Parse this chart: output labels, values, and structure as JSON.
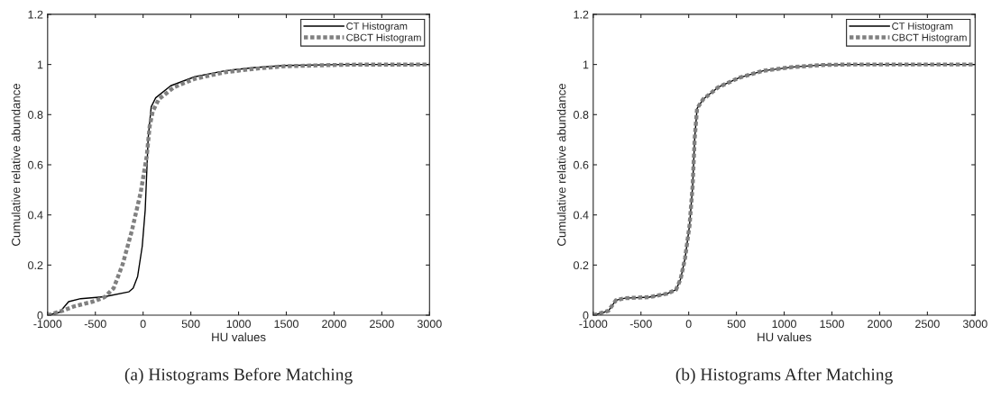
{
  "chart_data": [
    {
      "type": "line",
      "xlabel": "HU values",
      "ylabel": "Cumulative relative abundance",
      "annotations": [
        "(a) Histograms Before Matching"
      ],
      "xlim": [
        -1000,
        3000
      ],
      "ylim": [
        0,
        1.2
      ],
      "xticks": [
        -1000,
        -500,
        0,
        500,
        1000,
        1500,
        2000,
        2500,
        3000
      ],
      "yticks": [
        0,
        0.2,
        0.4,
        0.6,
        0.8,
        1,
        1.2
      ],
      "grid": false,
      "legend": "top right",
      "series": [
        {
          "name": "CT Histogram",
          "color": "#000000",
          "line_style": "solid",
          "x": [
            -1000,
            -874,
            -780,
            -654,
            -403,
            -151,
            -104,
            -57,
            -9,
            22,
            53,
            85,
            132,
            289,
            541,
            855,
            1170,
            1484,
            2113,
            3000
          ],
          "values": [
            0,
            0.012,
            0.054,
            0.066,
            0.074,
            0.093,
            0.108,
            0.155,
            0.275,
            0.419,
            0.706,
            0.831,
            0.867,
            0.915,
            0.951,
            0.975,
            0.988,
            0.996,
            1.0,
            1.0
          ]
        },
        {
          "name": "CBCT Histogram",
          "color": "#808080",
          "line_style": "dotted",
          "x": [
            -1000,
            -843,
            -717,
            -528,
            -403,
            -308,
            -214,
            -119,
            -25,
            38,
            69,
            101,
            164,
            321,
            541,
            855,
            1170,
            1484,
            2113,
            3000
          ],
          "values": [
            0,
            0.018,
            0.036,
            0.054,
            0.072,
            0.108,
            0.203,
            0.335,
            0.49,
            0.634,
            0.754,
            0.813,
            0.861,
            0.909,
            0.943,
            0.969,
            0.983,
            0.993,
            0.999,
            1.0
          ]
        }
      ]
    },
    {
      "type": "line",
      "xlabel": "HU values",
      "ylabel": "Cumulative relative abundance",
      "annotations": [
        "(b) Histograms After Matching"
      ],
      "xlim": [
        -1000,
        3000
      ],
      "ylim": [
        0,
        1.2
      ],
      "xticks": [
        -1000,
        -500,
        0,
        500,
        1000,
        1500,
        2000,
        2500,
        3000
      ],
      "yticks": [
        0,
        0.2,
        0.4,
        0.6,
        0.8,
        1,
        1.2
      ],
      "grid": false,
      "legend": "top right",
      "series": [
        {
          "name": "CT Histogram",
          "color": "#000000",
          "line_style": "solid",
          "x": [
            -1000,
            -887,
            -840,
            -761,
            -667,
            -415,
            -226,
            -132,
            -85,
            -38,
            9,
            41,
            63,
            88,
            151,
            308,
            528,
            780,
            1094,
            1409,
            1723,
            3000
          ],
          "values": [
            0,
            0.012,
            0.018,
            0.06,
            0.068,
            0.072,
            0.086,
            0.102,
            0.144,
            0.227,
            0.359,
            0.514,
            0.706,
            0.825,
            0.861,
            0.909,
            0.947,
            0.975,
            0.99,
            0.998,
            1.0,
            1.0
          ]
        },
        {
          "name": "CBCT Histogram",
          "color": "#808080",
          "line_style": "dotted",
          "x": [
            -1000,
            -887,
            -840,
            -761,
            -667,
            -415,
            -226,
            -132,
            -85,
            -38,
            9,
            41,
            63,
            88,
            151,
            308,
            528,
            780,
            1094,
            1409,
            1723,
            3000
          ],
          "values": [
            0,
            0.012,
            0.018,
            0.06,
            0.068,
            0.072,
            0.086,
            0.102,
            0.144,
            0.227,
            0.359,
            0.514,
            0.706,
            0.825,
            0.861,
            0.909,
            0.947,
            0.975,
            0.99,
            0.998,
            1.0,
            1.0
          ]
        }
      ]
    }
  ]
}
